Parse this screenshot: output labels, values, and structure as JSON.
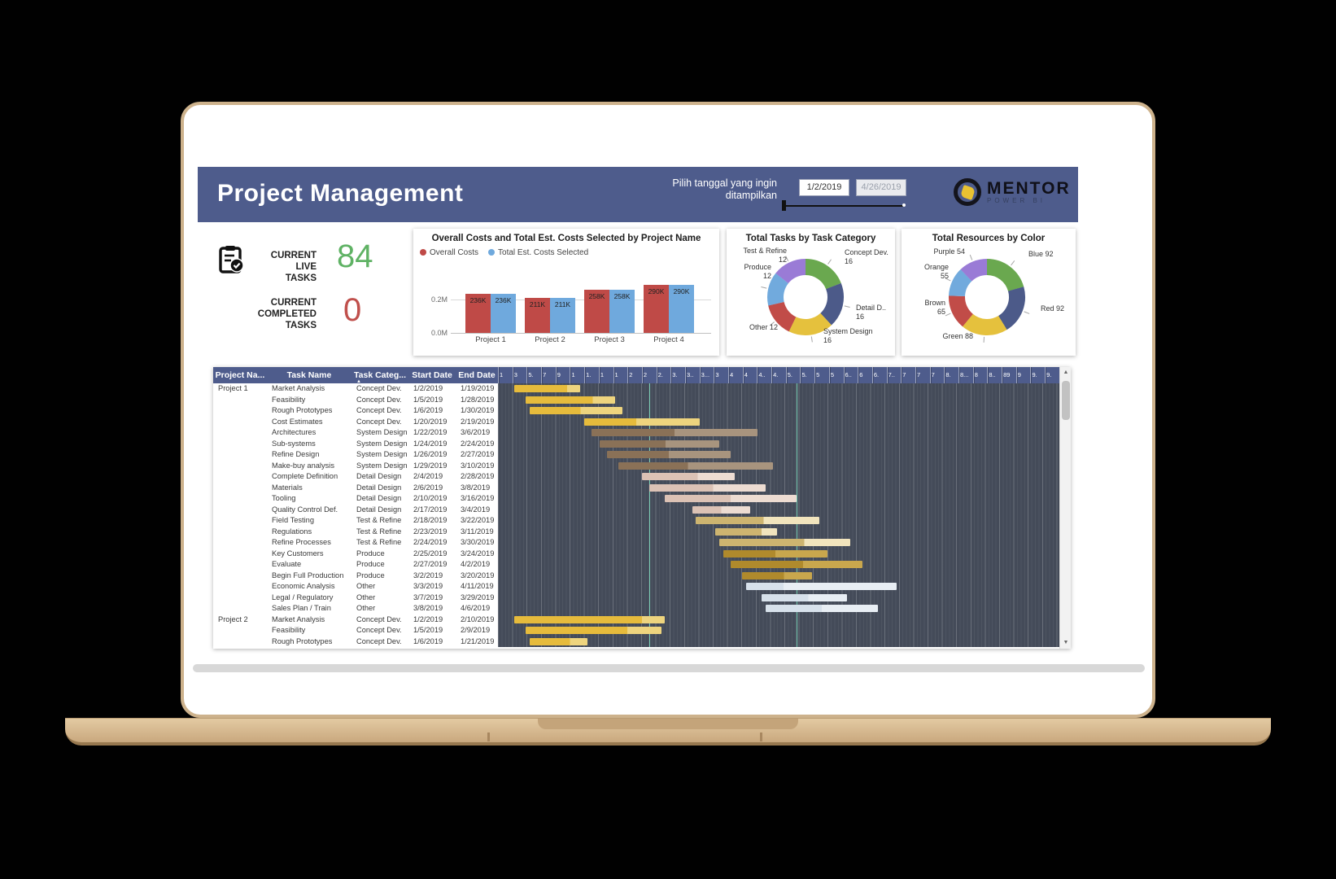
{
  "header": {
    "title": "Project Management",
    "prompt_l1": "Pilih tanggal yang ingin",
    "prompt_l2": "ditampilkan",
    "date_from": "1/2/2019",
    "date_to": "4/26/2019",
    "logo_text": "MENTOR",
    "logo_sub": "POWER BI",
    "bg_color": "#4e5c8c"
  },
  "kpi": {
    "live_l1": "CURRENT LIVE",
    "live_l2": "TASKS",
    "live_value": "84",
    "live_color": "#5fb264",
    "completed_l1": "CURRENT COMPLETED",
    "completed_l2": "TASKS",
    "completed_value": "0",
    "completed_color": "#c0504c"
  },
  "chart_data": [
    {
      "id": "costs_by_project",
      "type": "bar",
      "title": "Overall Costs and Total Est. Costs Selected by Project Name",
      "categories": [
        "Project 1",
        "Project 2",
        "Project 3",
        "Project 4"
      ],
      "series": [
        {
          "name": "Overall Costs",
          "color": "#bf4a47",
          "values_k": [
            236,
            211,
            258,
            290
          ],
          "labels": [
            "236K",
            "211K",
            "258K",
            "290K"
          ]
        },
        {
          "name": "Total Est. Costs Selected",
          "color": "#6fa9dd",
          "values_k": [
            236,
            211,
            258,
            290
          ],
          "labels": [
            "236K",
            "211K",
            "258K",
            "290K"
          ]
        }
      ],
      "y_ticks": [
        "0.2M",
        "0.0M"
      ],
      "ylim_m": [
        0,
        0.29
      ],
      "grid": true,
      "legend_position": "top-left"
    },
    {
      "id": "tasks_by_category",
      "type": "donut",
      "title": "Total Tasks by Task Category",
      "segments": [
        {
          "label": "Concept Dev.",
          "value": 16,
          "color": "#6aa84f"
        },
        {
          "label": "Detail D..",
          "value": 16,
          "color": "#4c5a89"
        },
        {
          "label": "System Design",
          "value": 16,
          "color": "#e5c13d"
        },
        {
          "label": "Other",
          "value": 12,
          "color": "#c14c48"
        },
        {
          "label": "Produce",
          "value": 12,
          "color": "#71aadd"
        },
        {
          "label": "Test & Refine",
          "value": 12,
          "color": "#9a7bd6"
        }
      ]
    },
    {
      "id": "resources_by_color",
      "type": "donut",
      "title": "Total Resources by Color",
      "segments": [
        {
          "label": "Blue",
          "value": 92,
          "color": "#6aa84f"
        },
        {
          "label": "Red",
          "value": 92,
          "color": "#4c5a89"
        },
        {
          "label": "Green",
          "value": 88,
          "color": "#e5c13d"
        },
        {
          "label": "Brown",
          "value": 65,
          "color": "#c14c48"
        },
        {
          "label": "Orange",
          "value": 55,
          "color": "#71aadd"
        },
        {
          "label": "Purple",
          "value": 54,
          "color": "#9a7bd6"
        }
      ]
    },
    {
      "id": "project_gantt",
      "type": "gantt",
      "columns": [
        "Project Na...",
        "Task Name",
        "Task Categ...",
        "Start Date",
        "End Date"
      ],
      "timeline_ticks": [
        "1",
        "3",
        "5.",
        "7",
        "9",
        "1",
        "1.",
        "1",
        "1",
        "2",
        "2",
        "2.",
        "3.",
        "3..",
        "3...",
        "3",
        "4",
        "4",
        "4..",
        "4.",
        "5.",
        "5.",
        "5",
        "5",
        "6..",
        "6",
        "6.",
        "7..",
        "7",
        "7",
        "7",
        "8.",
        "8...",
        "8",
        "8..",
        "89",
        "9",
        "9.",
        "9."
      ],
      "category_colors": {
        "Concept Dev.": [
          "#e6bb3c",
          "#eed47e"
        ],
        "System Design": [
          "#8a7157",
          "#a8947e"
        ],
        "Detail Design": [
          "#dcc2b5",
          "#eddcd2"
        ],
        "Test & Refine": [
          "#cdb470",
          "#f1e4bd"
        ],
        "Produce": [
          "#b08a2c",
          "#c9a74d"
        ],
        "Other": [
          "#d7e1eb",
          "#e8eef4"
        ]
      },
      "rows": [
        {
          "project": "Project 1",
          "task": "Market Analysis",
          "category": "Concept Dev.",
          "start": "1/2/2019",
          "end": "1/19/2019",
          "start_day": 0,
          "end_day": 17,
          "progress": 0.8
        },
        {
          "project": "",
          "task": "Feasibility",
          "category": "Concept Dev.",
          "start": "1/5/2019",
          "end": "1/28/2019",
          "start_day": 3,
          "end_day": 26,
          "progress": 0.75
        },
        {
          "project": "",
          "task": "Rough Prototypes",
          "category": "Concept Dev.",
          "start": "1/6/2019",
          "end": "1/30/2019",
          "start_day": 4,
          "end_day": 28,
          "progress": 0.55
        },
        {
          "project": "",
          "task": "Cost Estimates",
          "category": "Concept Dev.",
          "start": "1/20/2019",
          "end": "2/19/2019",
          "start_day": 18,
          "end_day": 48,
          "progress": 0.45
        },
        {
          "project": "",
          "task": "Architectures",
          "category": "System Design",
          "start": "1/22/2019",
          "end": "3/6/2019",
          "start_day": 20,
          "end_day": 63,
          "progress": 0.5
        },
        {
          "project": "",
          "task": "Sub-systems",
          "category": "System Design",
          "start": "1/24/2019",
          "end": "2/24/2019",
          "start_day": 22,
          "end_day": 53,
          "progress": 0.55
        },
        {
          "project": "",
          "task": "Refine Design",
          "category": "System Design",
          "start": "1/26/2019",
          "end": "2/27/2019",
          "start_day": 24,
          "end_day": 56,
          "progress": 0.5
        },
        {
          "project": "",
          "task": "Make-buy analysis",
          "category": "System Design",
          "start": "1/29/2019",
          "end": "3/10/2019",
          "start_day": 27,
          "end_day": 67,
          "progress": 0.45
        },
        {
          "project": "",
          "task": "Complete Definition",
          "category": "Detail Design",
          "start": "2/4/2019",
          "end": "2/28/2019",
          "start_day": 33,
          "end_day": 57,
          "progress": 0.6
        },
        {
          "project": "",
          "task": "Materials",
          "category": "Detail Design",
          "start": "2/6/2019",
          "end": "3/8/2019",
          "start_day": 35,
          "end_day": 65,
          "progress": 0.55
        },
        {
          "project": "",
          "task": "Tooling",
          "category": "Detail Design",
          "start": "2/10/2019",
          "end": "3/16/2019",
          "start_day": 39,
          "end_day": 73,
          "progress": 0.5
        },
        {
          "project": "",
          "task": "Quality Control Def.",
          "category": "Detail Design",
          "start": "2/17/2019",
          "end": "3/4/2019",
          "start_day": 46,
          "end_day": 61,
          "progress": 0.5
        },
        {
          "project": "",
          "task": "Field Testing",
          "category": "Test & Refine",
          "start": "2/18/2019",
          "end": "3/22/2019",
          "start_day": 47,
          "end_day": 79,
          "progress": 0.55
        },
        {
          "project": "",
          "task": "Regulations",
          "category": "Test & Refine",
          "start": "2/23/2019",
          "end": "3/11/2019",
          "start_day": 52,
          "end_day": 68,
          "progress": 0.75
        },
        {
          "project": "",
          "task": "Refine Processes",
          "category": "Test & Refine",
          "start": "2/24/2019",
          "end": "3/30/2019",
          "start_day": 53,
          "end_day": 87,
          "progress": 0.65
        },
        {
          "project": "",
          "task": "Key Customers",
          "category": "Produce",
          "start": "2/25/2019",
          "end": "3/24/2019",
          "start_day": 54,
          "end_day": 81,
          "progress": 0.5
        },
        {
          "project": "",
          "task": "Evaluate",
          "category": "Produce",
          "start": "2/27/2019",
          "end": "4/2/2019",
          "start_day": 56,
          "end_day": 90,
          "progress": 0.55
        },
        {
          "project": "",
          "task": "Begin Full Production",
          "category": "Produce",
          "start": "3/2/2019",
          "end": "3/20/2019",
          "start_day": 59,
          "end_day": 77,
          "progress": 0.6
        },
        {
          "project": "",
          "task": "Economic Analysis",
          "category": "Other",
          "start": "3/3/2019",
          "end": "4/11/2019",
          "start_day": 60,
          "end_day": 99,
          "progress": 0.25
        },
        {
          "project": "",
          "task": "Legal / Regulatory",
          "category": "Other",
          "start": "3/7/2019",
          "end": "3/29/2019",
          "start_day": 64,
          "end_day": 86,
          "progress": 0.55
        },
        {
          "project": "",
          "task": "Sales Plan / Train",
          "category": "Other",
          "start": "3/8/2019",
          "end": "4/6/2019",
          "start_day": 65,
          "end_day": 94,
          "progress": 0.5
        },
        {
          "project": "Project 2",
          "task": "Market Analysis",
          "category": "Concept Dev.",
          "start": "1/2/2019",
          "end": "2/10/2019",
          "start_day": 0,
          "end_day": 39,
          "progress": 0.85
        },
        {
          "project": "",
          "task": "Feasibility",
          "category": "Concept Dev.",
          "start": "1/5/2019",
          "end": "2/9/2019",
          "start_day": 3,
          "end_day": 38,
          "progress": 0.75
        },
        {
          "project": "",
          "task": "Rough Prototypes",
          "category": "Concept Dev.",
          "start": "1/6/2019",
          "end": "1/21/2019",
          "start_day": 4,
          "end_day": 19,
          "progress": 0.7
        }
      ]
    }
  ]
}
